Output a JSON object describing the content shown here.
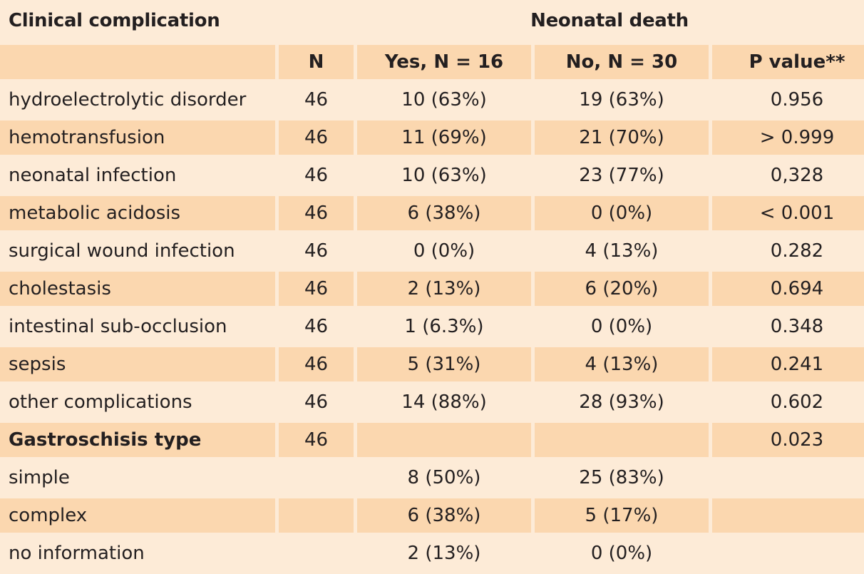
{
  "title": {
    "left": "Clinical complication",
    "right": "Neonatal death"
  },
  "headers": [
    "",
    "N",
    "Yes, N = 16",
    "No, N = 30",
    "P value**"
  ],
  "rows": [
    {
      "label": "hydroelectrolytic disorder",
      "n": "46",
      "yes": "10 (63%)",
      "no": "19 (63%)",
      "p": "0.956"
    },
    {
      "label": "hemotransfusion",
      "n": "46",
      "yes": "11 (69%)",
      "no": "21 (70%)",
      "p": "> 0.999"
    },
    {
      "label": "neonatal infection",
      "n": "46",
      "yes": "10 (63%)",
      "no": "23 (77%)",
      "p": "0,328"
    },
    {
      "label": "metabolic acidosis",
      "n": "46",
      "yes": "6 (38%)",
      "no": "0 (0%)",
      "p": "< 0.001"
    },
    {
      "label": "surgical wound infection",
      "n": "46",
      "yes": "0 (0%)",
      "no": "4 (13%)",
      "p": "0.282"
    },
    {
      "label": "cholestasis",
      "n": "46",
      "yes": "2 (13%)",
      "no": "6 (20%)",
      "p": "0.694"
    },
    {
      "label": "intestinal sub-occlusion",
      "n": "46",
      "yes": "1 (6.3%)",
      "no": "0 (0%)",
      "p": "0.348"
    },
    {
      "label": "sepsis",
      "n": "46",
      "yes": "5 (31%)",
      "no": "4 (13%)",
      "p": "0.241"
    },
    {
      "label": "other complications",
      "n": "46",
      "yes": "14 (88%)",
      "no": "28 (93%)",
      "p": "0.602"
    },
    {
      "label": "Gastroschisis type",
      "n": "46",
      "yes": "",
      "no": "",
      "p": "0.023"
    },
    {
      "label": "simple",
      "n": "",
      "yes": "8 (50%)",
      "no": "25 (83%)",
      "p": ""
    },
    {
      "label": "complex",
      "n": "",
      "yes": "6 (38%)",
      "no": "5 (17%)",
      "p": ""
    },
    {
      "label": "no information",
      "n": "",
      "yes": "2 (13%)",
      "no": "0 (0%)",
      "p": ""
    }
  ],
  "colors": {
    "background": "#fdebd7",
    "band": "#fbd7af",
    "text": "#231f20"
  }
}
